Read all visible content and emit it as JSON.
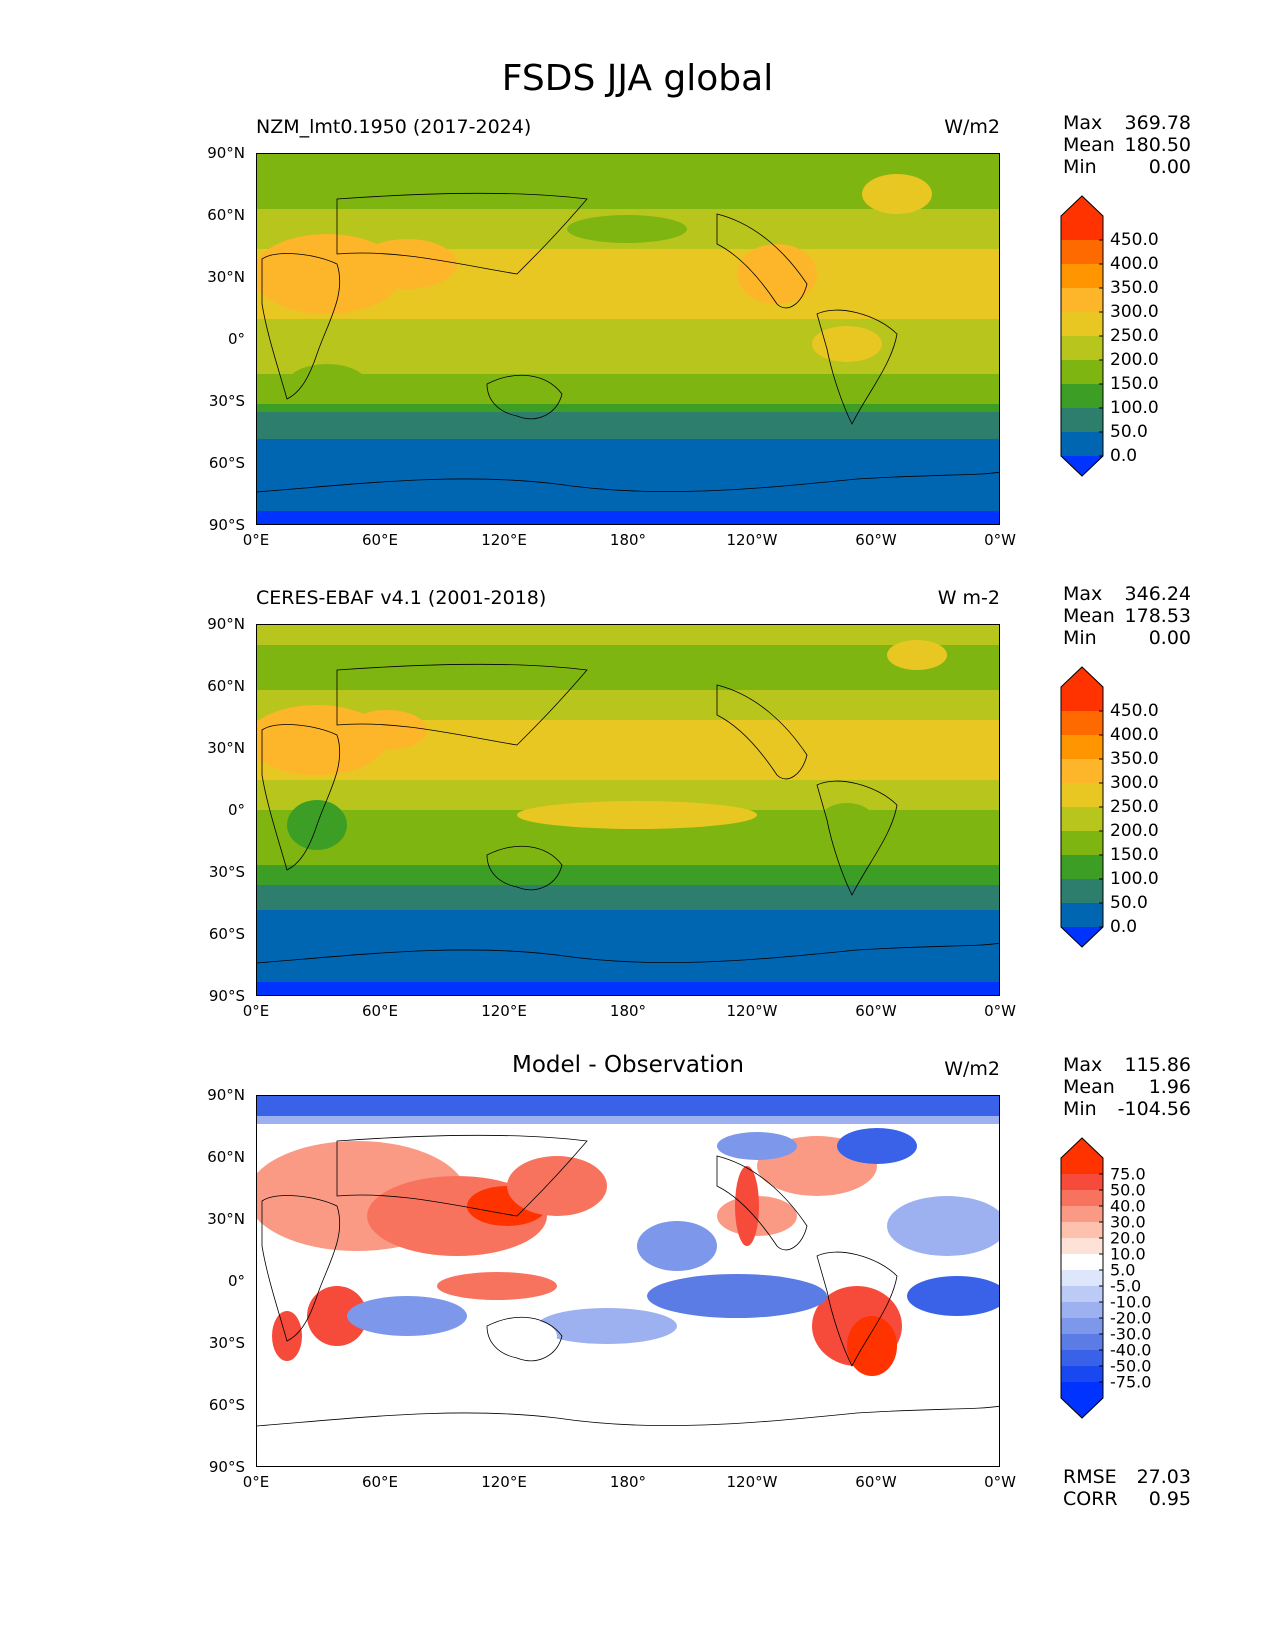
{
  "suptitle": "FSDS JJA global",
  "panels": [
    {
      "left_title": "NZM_lmt0.1950 (2017-2024)",
      "center_title": "",
      "units": "W/m2",
      "stats": {
        "max_label": "Max",
        "max": "369.78",
        "mean_label": "Mean",
        "mean": "180.50",
        "min_label": "Min",
        "min": "0.00"
      },
      "colorbar": {
        "labels": [
          "450.0",
          "400.0",
          "350.0",
          "300.0",
          "250.0",
          "200.0",
          "150.0",
          "100.0",
          "50.0",
          "0.0"
        ],
        "colors": [
          "#ff3300",
          "#ff6a00",
          "#ff9500",
          "#fdb52a",
          "#e9c723",
          "#b8c51c",
          "#7fb511",
          "#3d9e26",
          "#2e7e6e",
          "#0066b2"
        ],
        "over_color": "#ff3300",
        "under_color": "#0033ff"
      }
    },
    {
      "left_title": "CERES-EBAF v4.1 (2001-2018)",
      "center_title": "",
      "units": "W m-2",
      "stats": {
        "max_label": "Max",
        "max": "346.24",
        "mean_label": "Mean",
        "mean": "178.53",
        "min_label": "Min",
        "min": "0.00"
      },
      "colorbar": {
        "labels": [
          "450.0",
          "400.0",
          "350.0",
          "300.0",
          "250.0",
          "200.0",
          "150.0",
          "100.0",
          "50.0",
          "0.0"
        ],
        "colors": [
          "#ff3300",
          "#ff6a00",
          "#ff9500",
          "#fdb52a",
          "#e9c723",
          "#b8c51c",
          "#7fb511",
          "#3d9e26",
          "#2e7e6e",
          "#0066b2"
        ],
        "over_color": "#ff3300",
        "under_color": "#0033ff"
      }
    },
    {
      "left_title": "",
      "center_title": "Model - Observation",
      "units": "W/m2",
      "stats": {
        "max_label": "Max",
        "max": "115.86",
        "mean_label": "Mean",
        "mean": "1.96",
        "min_label": "Min",
        "min": "-104.56"
      },
      "colorbar": {
        "labels": [
          "75.0",
          "50.0",
          "40.0",
          "30.0",
          "20.0",
          "10.0",
          "5.0",
          "-5.0",
          "-10.0",
          "-20.0",
          "-30.0",
          "-40.0",
          "-50.0",
          "-75.0"
        ],
        "colors": [
          "#ff3300",
          "#f64a3a",
          "#f8735e",
          "#fb9a84",
          "#fdc1ad",
          "#fee2d8",
          "#ffffff",
          "#dde6fb",
          "#bccbf6",
          "#9db1f0",
          "#7d97ea",
          "#5c7ce5",
          "#3962e8",
          "#1a48f0",
          "#0033ff"
        ],
        "over_color": "#ff3300",
        "under_color": "#0033ff"
      },
      "metrics": {
        "rmse_label": "RMSE",
        "rmse": "27.03",
        "corr_label": "CORR",
        "corr": "0.95"
      }
    }
  ],
  "axes": {
    "y_labels": [
      "90°N",
      "60°N",
      "30°N",
      "0°",
      "30°S",
      "60°S",
      "90°S"
    ],
    "x_labels": [
      "0°E",
      "60°E",
      "120°E",
      "180°",
      "120°W",
      "60°W",
      "0°W"
    ]
  }
}
